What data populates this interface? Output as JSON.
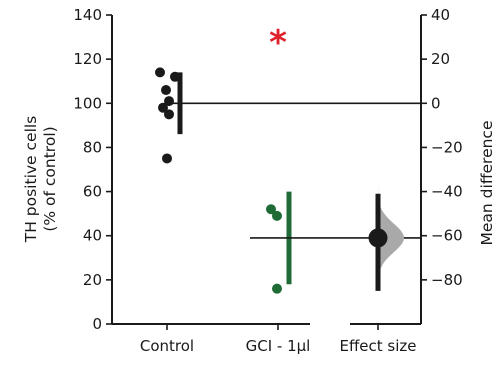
{
  "chart_data": {
    "type": "scatter",
    "title": "",
    "ylabel": [
      "TH positive cells",
      "(% of control)"
    ],
    "ylabel_right": "Mean difference",
    "ylim": [
      0,
      140
    ],
    "yticks": [
      0,
      20,
      40,
      60,
      80,
      100,
      120,
      140
    ],
    "ylim_right": [
      -100,
      40
    ],
    "yticks_right": [
      -80,
      -60,
      -40,
      -20,
      0,
      20,
      40
    ],
    "categories": [
      "Control",
      "GCI - 1μl",
      "Effect size"
    ],
    "significance_marker": "*",
    "colors": {
      "control": "#1a1a1a",
      "gci": "#1e6b35",
      "star": "#e0202b",
      "effect": "#1a1a1a",
      "distribution": "#a9a9a9"
    },
    "series": [
      {
        "name": "Control",
        "points": [
          114,
          112,
          106,
          101,
          98,
          95,
          75
        ],
        "error_bar": {
          "low": 86,
          "high": 114
        }
      },
      {
        "name": "GCI - 1μl",
        "points": [
          52,
          49,
          16
        ],
        "error_bar": {
          "low": 18,
          "high": 60
        }
      }
    ],
    "effect_size": {
      "mean_difference": -61,
      "ci": [
        -85,
        -41
      ]
    }
  }
}
